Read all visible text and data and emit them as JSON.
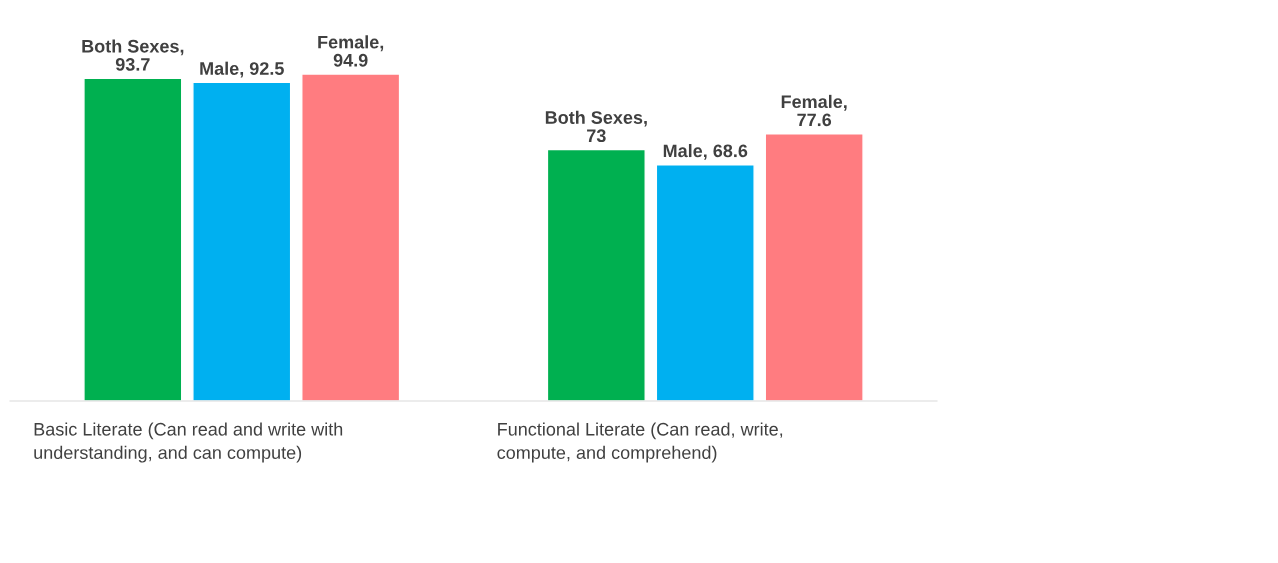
{
  "chart_data": {
    "type": "bar",
    "categories": [
      "Basic Literate (Can read and write with understanding, and can compute)",
      "Functional Literate (Can read, write, compute, and comprehend)"
    ],
    "series": [
      {
        "color": "#00b050",
        "values": [
          93.7,
          73
        ],
        "value_labels": [
          "Both Sexes, 93.7",
          "Both Sexes, 73"
        ]
      },
      {
        "color": "#00b0f0",
        "values": [
          92.5,
          68.6
        ],
        "value_labels": [
          "Male, 92.5",
          "Male, 68.6"
        ]
      },
      {
        "color": "#ff7c80",
        "values": [
          94.9,
          77.6
        ],
        "value_labels": [
          "Female, 94.9",
          "Female, 77.6"
        ]
      }
    ],
    "legend": false
  }
}
